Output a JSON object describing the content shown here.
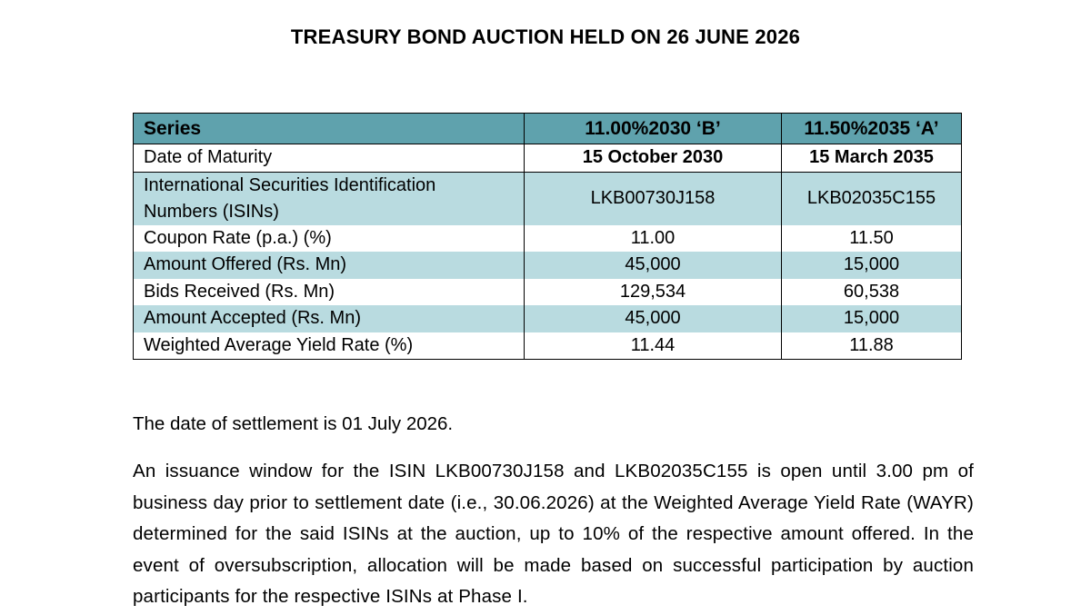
{
  "title": "TREASURY BOND AUCTION HELD ON 26 JUNE 2026",
  "table": {
    "header": {
      "label": "Series",
      "col1": "11.00%2030 ‘B’",
      "col2": "11.50%2035 ‘A’"
    },
    "rows": [
      {
        "label": "Date of Maturity",
        "col1": "15 October 2030",
        "col2": "15 March 2035"
      },
      {
        "label": "International Securities Identification Numbers (ISINs)",
        "col1": "LKB00730J158",
        "col2": "LKB02035C155"
      },
      {
        "label": "Coupon Rate (p.a.) (%)",
        "col1": "11.00",
        "col2": "11.50"
      },
      {
        "label": "Amount Offered (Rs. Mn)",
        "col1": "45,000",
        "col2": "15,000"
      },
      {
        "label": "Bids Received (Rs. Mn)",
        "col1": "129,534",
        "col2": "60,538"
      },
      {
        "label": "Amount Accepted (Rs. Mn)",
        "col1": "45,000",
        "col2": "15,000"
      },
      {
        "label": "Weighted Average Yield Rate (%)",
        "col1": "11.44",
        "col2": "11.88"
      }
    ]
  },
  "settlement_text": "The date of settlement is 01 July 2026.",
  "issuance_text": "An issuance window for the ISIN LKB00730J158 and LKB02035C155 is open until 3.00 pm of business day prior to settlement date (i.e., 30.06.2026) at the Weighted Average Yield Rate (WAYR) determined for the said ISINs at the auction, up to 10% of the respective amount offered. In the event of oversubscription, allocation will be made based on successful participation by auction participants for the respective ISINs at Phase I.",
  "colors": {
    "header_bg": "#5fa2ad",
    "band_bg": "#b9dbe0"
  }
}
